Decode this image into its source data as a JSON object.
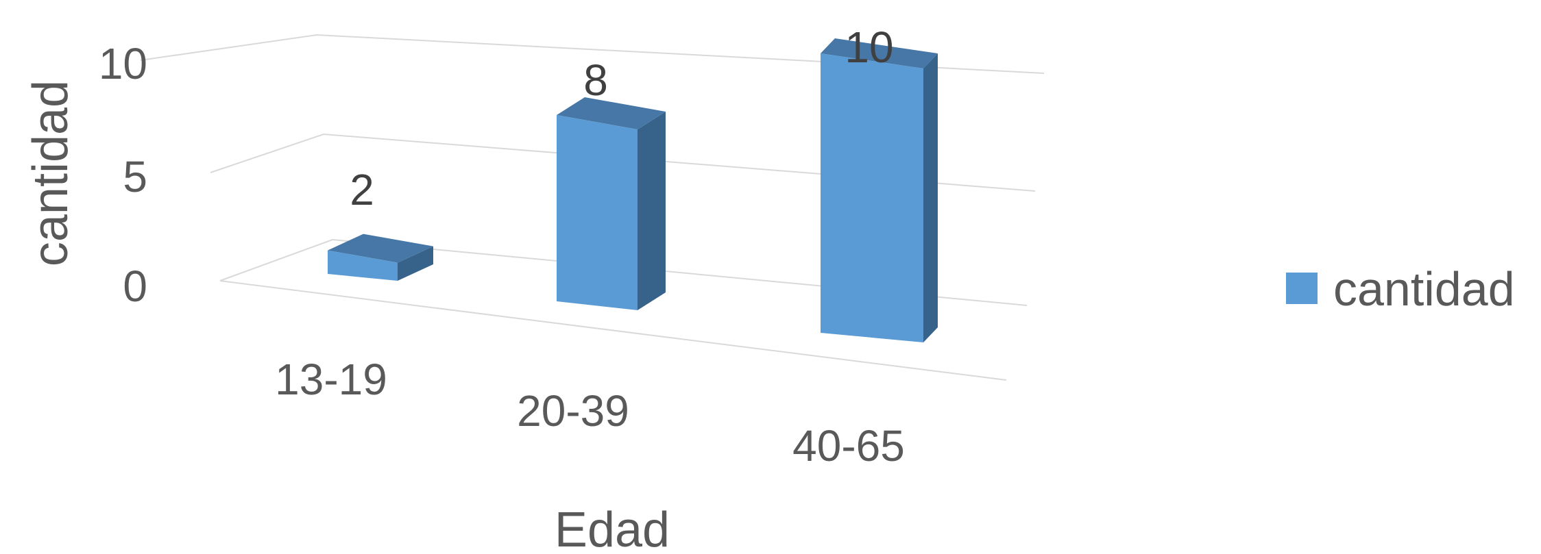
{
  "chart_data": {
    "type": "bar",
    "subtype": "3d-clustered-column",
    "categories": [
      "13-19",
      "20-39",
      "40-65"
    ],
    "series": [
      {
        "name": "cantidad",
        "values": [
          2,
          8,
          10
        ]
      }
    ],
    "data_labels": [
      "2",
      "8",
      "10"
    ],
    "y_ticks": [
      "0",
      "5",
      "10"
    ],
    "ylim": [
      0,
      10
    ],
    "xlabel": "Edad",
    "ylabel": "cantidad",
    "title": "",
    "grid": true,
    "legend_position": "right",
    "colors": {
      "front": "#5b9bd5",
      "top": "#4677a6",
      "side": "#37638a",
      "grid": "#d9d9d9",
      "text": "#595959"
    }
  }
}
